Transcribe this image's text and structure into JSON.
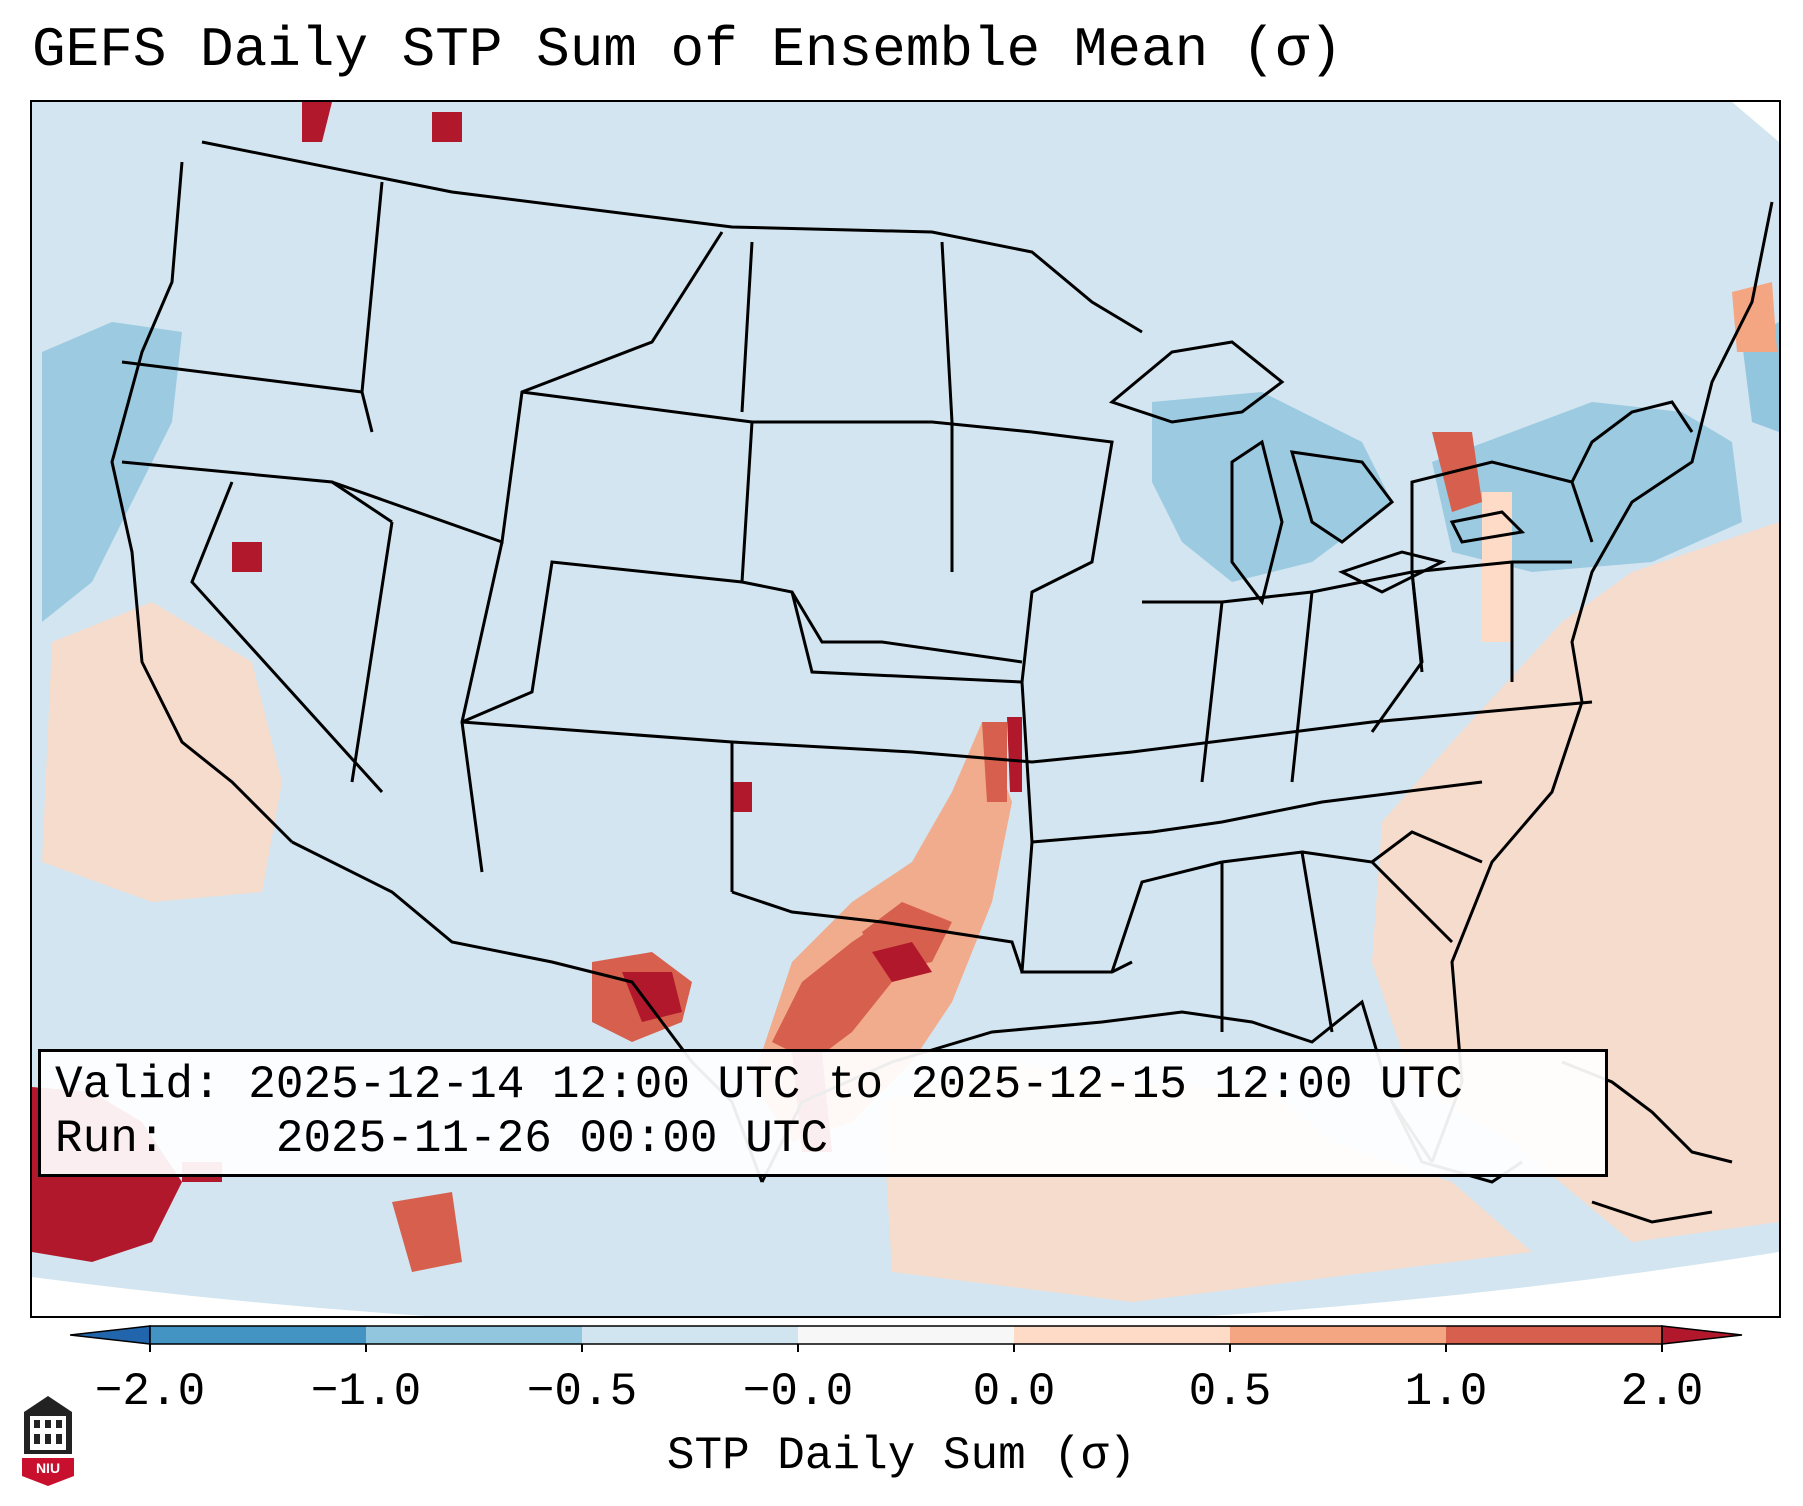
{
  "title": "GEFS Daily STP Sum of Ensemble Mean (σ)",
  "map": {
    "projection": "CONUS Lambert",
    "ocean_color": "#d2e5f0",
    "border_color": "#000000"
  },
  "info_box": {
    "valid_label": "Valid:",
    "valid_value": "2025-12-14 12:00 UTC to 2025-12-15 12:00 UTC",
    "run_label": "Run:",
    "run_value": "2025-11-26 00:00 UTC"
  },
  "colorbar": {
    "label": "STP Daily Sum (σ)",
    "ticks": [
      "−2.0",
      "−1.0",
      "−0.5",
      "−0.0",
      "0.0",
      "0.5",
      "1.0",
      "2.0"
    ],
    "bins": [
      {
        "range": "< -2.0",
        "color": "#2166ac"
      },
      {
        "range": "-2.0 to -1.0",
        "color": "#4393c3"
      },
      {
        "range": "-1.0 to -0.5",
        "color": "#92c5de"
      },
      {
        "range": "-0.5 to -0.0",
        "color": "#d1e5f0"
      },
      {
        "range": "-0.0 to 0.0",
        "color": "#f7f7f7"
      },
      {
        "range": "0.0 to 0.5",
        "color": "#fddbc7"
      },
      {
        "range": "0.5 to 1.0",
        "color": "#f4a582"
      },
      {
        "range": "1.0 to 2.0",
        "color": "#d6604d"
      },
      {
        "range": "> 2.0",
        "color": "#b2182b"
      }
    ]
  },
  "logo": {
    "text": "NIU",
    "color": "#c8102e"
  }
}
